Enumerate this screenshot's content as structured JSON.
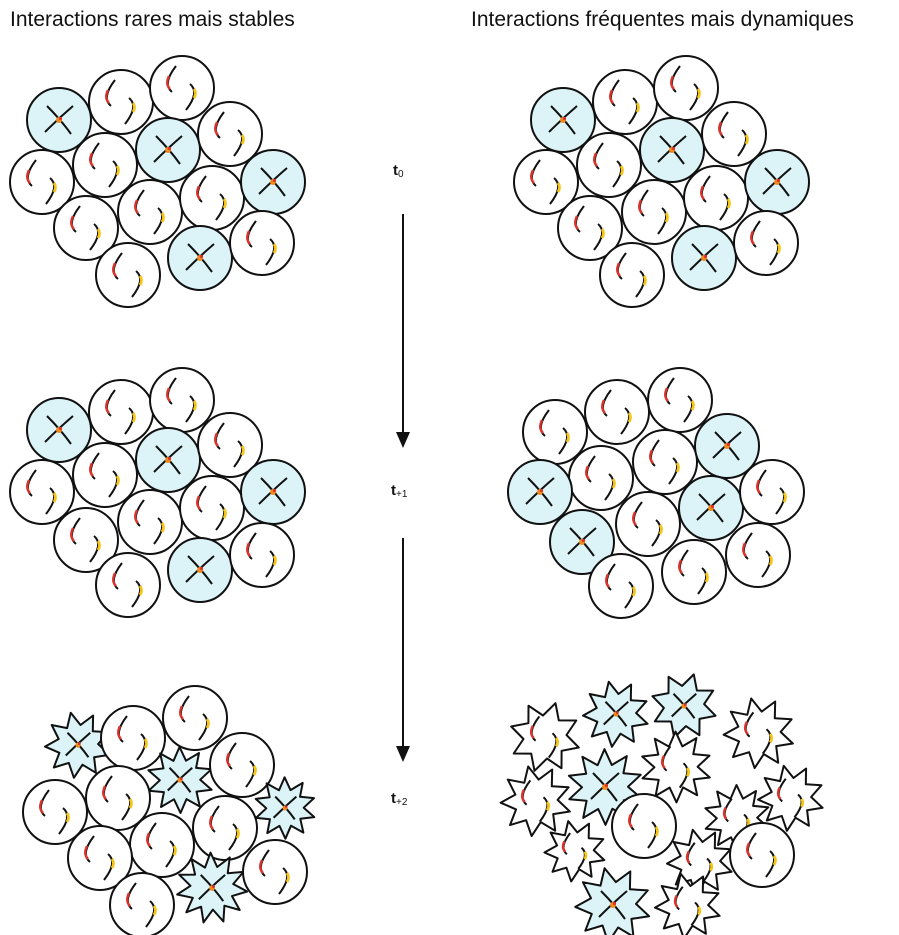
{
  "titles": {
    "left": "Interactions rares mais stables",
    "right": "Interactions fréquentes mais dynamiques"
  },
  "time_labels": [
    {
      "main": "t",
      "sub": "0"
    },
    {
      "main": "t",
      "sub": "+1"
    },
    {
      "main": "t",
      "sub": "+2"
    }
  ],
  "colors": {
    "cell_fill": "#ffffff",
    "interacting_fill": "#dcf4f7",
    "outline": "#111111",
    "marker_red": "#d9342b",
    "marker_yellow": "#f5c518",
    "marker_orange": "#f08a1c"
  },
  "icons": [
    "cell-circle-icon",
    "star-cell-icon",
    "receptor-arc-icon",
    "time-arrow-icon"
  ]
}
